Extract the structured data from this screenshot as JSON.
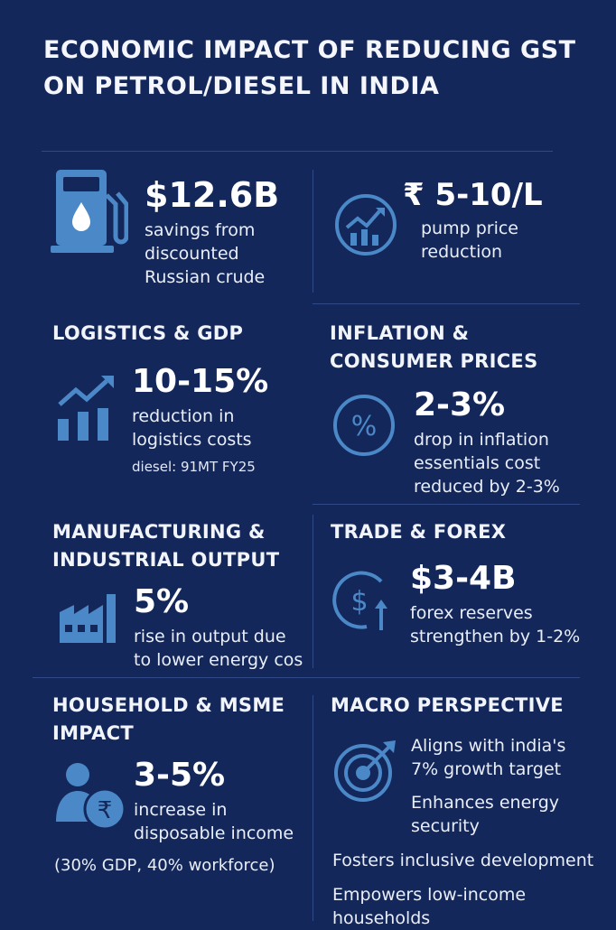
{
  "title": "ECONOMIC IMPACT OF REDUCING GST ON PETROL/DIESEL IN INDIA",
  "top": {
    "savings": {
      "value": "$12.6B",
      "desc": "savings from discounted Russian crude",
      "icon": "fuel-pump-icon"
    },
    "price": {
      "value": "₹ 5-10/L",
      "desc": "pump price reduction",
      "icon": "chart-circle-icon"
    }
  },
  "logistics": {
    "heading": "LOGISTICS & GDP",
    "value": "10-15%",
    "desc": "reduction in logistics costs",
    "note": "diesel: 91MT FY25",
    "icon": "growth-chart-icon"
  },
  "inflation": {
    "heading": "INFLATION & CONSUMER PRICES",
    "value": "2-3%",
    "desc": "drop in inflation essentials cost reduced by 2-3%",
    "icon": "percent-icon"
  },
  "manufacturing": {
    "heading": "MANUFACTURING & INDUSTRIAL OUTPUT",
    "value": "5%",
    "desc": "rise in output due to lower energy cos",
    "icon": "factory-icon"
  },
  "trade": {
    "heading": "TRADE & FOREX",
    "value": "$3-4B",
    "desc": "forex reserves strengthen by 1-2%",
    "icon": "dollar-up-icon"
  },
  "household": {
    "heading": "HOUSEHOLD & MSME IMPACT",
    "value": "3-5%",
    "desc": "increase in disposable income",
    "note": "(30% GDP, 40% workforce)",
    "icon": "person-rupee-icon"
  },
  "macro": {
    "heading": "MACRO PERSPECTIVE",
    "icon": "target-icon",
    "bullets": [
      "Aligns with india's 7% growth target",
      "Enhances energy security",
      "Fosters inclusive development",
      "Empowers low-income households"
    ]
  },
  "colors": {
    "background": "#14275a",
    "accent": "#4a88c7",
    "rule": "#2f4a86"
  }
}
